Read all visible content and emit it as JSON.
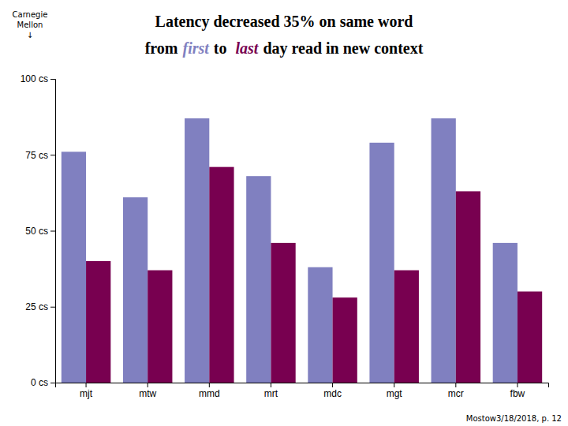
{
  "chart_data": {
    "type": "bar",
    "title": "Latency decreased 35% on same word",
    "subtitle": [
      "from",
      "first",
      "to ",
      "last",
      "day read in new context"
    ],
    "annotations": [
      "Carnegie",
      "Mellon",
      "↓",
      "Mostow3/18/2018, p. 12"
    ],
    "categories": [
      "mjt",
      "mtw",
      "mmd",
      "mrt",
      "mdc",
      "mgt",
      "mcr",
      "fbw"
    ],
    "series": [
      {
        "color": "#8080c0",
        "values": [
          76,
          61,
          87,
          68,
          38,
          79,
          87,
          46
        ]
      },
      {
        "color": "#780050",
        "values": [
          40,
          37,
          71,
          46,
          28,
          37,
          63,
          30
        ]
      }
    ],
    "ylim": [
      0,
      100
    ],
    "yticks": [
      {
        "value": 0,
        "label": "0 cs"
      },
      {
        "value": 25,
        "label": "25 cs"
      },
      {
        "value": 50,
        "label": "50 cs"
      },
      {
        "value": 75,
        "label": "75 cs"
      },
      {
        "value": 100,
        "label": "100 cs"
      }
    ],
    "grid": false
  }
}
